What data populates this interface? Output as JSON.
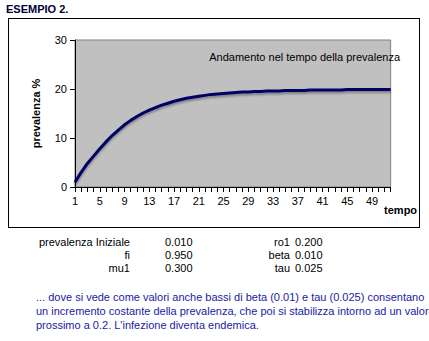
{
  "heading": "ESEMPIO 2.",
  "chart_data": {
    "type": "line",
    "title": "Andamento nel tempo della prevalenza",
    "y_label": "prevalenza %",
    "x_label": "tempo",
    "categories": [
      "1",
      null,
      null,
      null,
      "5",
      null,
      null,
      null,
      "9",
      null,
      null,
      null,
      "13",
      null,
      null,
      null,
      "17",
      null,
      null,
      null,
      "21",
      null,
      null,
      null,
      "25",
      null,
      null,
      null,
      "29",
      null,
      null,
      null,
      "33",
      null,
      null,
      null,
      "37",
      null,
      null,
      null,
      "41",
      null,
      null,
      null,
      "45",
      null,
      null,
      null,
      "49",
      null,
      null,
      null
    ],
    "values": [
      1.0,
      3.0,
      4.8,
      6.3,
      7.8,
      9.2,
      10.5,
      11.6,
      12.7,
      13.6,
      14.4,
      15.1,
      15.7,
      16.2,
      16.7,
      17.1,
      17.5,
      17.8,
      18.1,
      18.3,
      18.5,
      18.7,
      18.9,
      19.0,
      19.1,
      19.2,
      19.3,
      19.4,
      19.4,
      19.5,
      19.5,
      19.6,
      19.6,
      19.6,
      19.7,
      19.7,
      19.7,
      19.7,
      19.8,
      19.8,
      19.8,
      19.8,
      19.8,
      19.8,
      19.9,
      19.9,
      19.9,
      19.9,
      19.9,
      19.9,
      19.9,
      19.9
    ],
    "color": "#000066",
    "marker": "none",
    "ylim": [
      0,
      30
    ],
    "yticks": [
      0,
      10,
      20,
      30
    ],
    "grid": false
  },
  "parameters": [
    [
      {
        "name": "prevalenza Iniziale",
        "value": "0.010"
      },
      {
        "name": "ro1",
        "value": "0.200"
      }
    ],
    [
      {
        "name": "fi",
        "value": "0.950"
      },
      {
        "name": "beta",
        "value": "0.010"
      }
    ],
    [
      {
        "name": "mu1",
        "value": "0.300"
      },
      {
        "name": "tau",
        "value": "0.025"
      }
    ]
  ],
  "caption": [
    "... dove si vede come valori anche bassi di beta (0.01) e tau (0.025) consentano",
    "un incremento costante della prevalenza, che poi si stabilizza intorno ad un valore",
    "prossimo a 0.2. L'infezione diventa endemica."
  ]
}
